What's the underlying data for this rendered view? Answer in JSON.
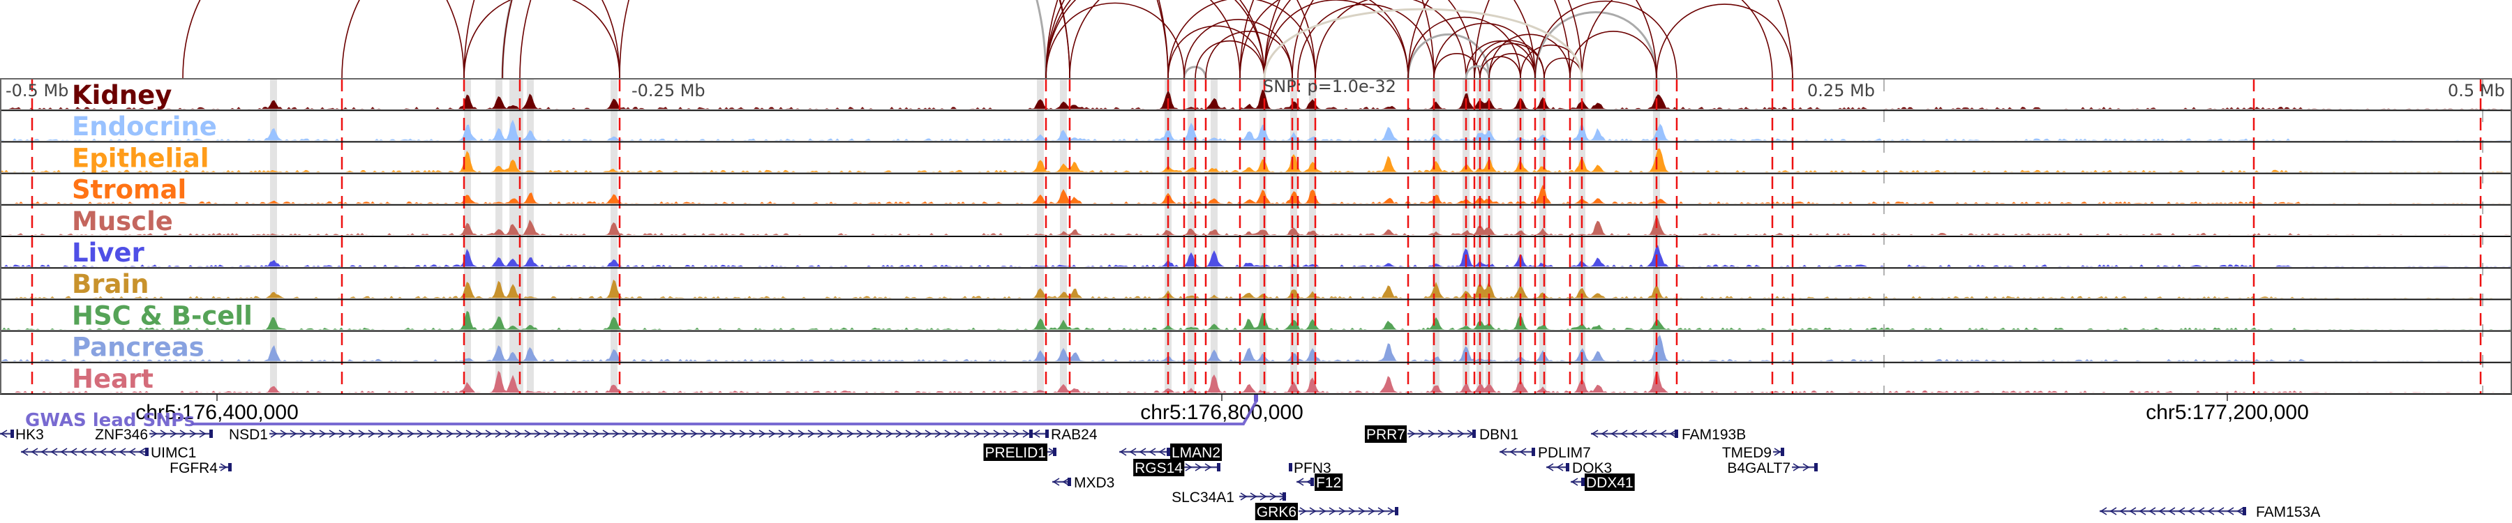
{
  "axis": {
    "top_labels": [
      "-0.5 Mb",
      "-0.25 Mb",
      "SNP: p=1.0e-32",
      "0.25 Mb",
      "0.5 Mb"
    ],
    "coords": [
      "chr5:176,400,000",
      "chr5:176,800,000",
      "chr5:177,200,000"
    ]
  },
  "tracks": [
    {
      "label": "Kidney",
      "color": "#6b0000"
    },
    {
      "label": "Endocrine",
      "color": "#99c2ff"
    },
    {
      "label": "Epithelial",
      "color": "#ff9c1a"
    },
    {
      "label": "Stromal",
      "color": "#ff7314"
    },
    {
      "label": "Muscle",
      "color": "#c4665e"
    },
    {
      "label": "Liver",
      "color": "#4f4fe6"
    },
    {
      "label": "Brain",
      "color": "#c8922c"
    },
    {
      "label": "HSC & B-cell",
      "color": "#55a357"
    },
    {
      "label": "Pancreas",
      "color": "#88a2e0"
    },
    {
      "label": "Heart",
      "color": "#d46c7a"
    }
  ],
  "gwas": {
    "label": "GWAS lead SNPs",
    "color": "#6a5acd"
  },
  "genes": [
    {
      "name": "HK3",
      "strand": "-",
      "highlight": false
    },
    {
      "name": "ZNF346",
      "strand": "+",
      "highlight": false
    },
    {
      "name": "UIMC1",
      "strand": "-",
      "highlight": false
    },
    {
      "name": "FGFR4",
      "strand": "+",
      "highlight": false
    },
    {
      "name": "NSD1",
      "strand": "+",
      "highlight": false
    },
    {
      "name": "RAB24",
      "strand": "-",
      "highlight": false
    },
    {
      "name": "PRELID1",
      "strand": "+",
      "highlight": true
    },
    {
      "name": "LMAN2",
      "strand": "-",
      "highlight": true
    },
    {
      "name": "RGS14",
      "strand": "+",
      "highlight": true
    },
    {
      "name": "MXD3",
      "strand": "-",
      "highlight": false
    },
    {
      "name": "PFN3",
      "strand": "+",
      "highlight": false
    },
    {
      "name": "F12",
      "strand": "-",
      "highlight": true
    },
    {
      "name": "SLC34A1",
      "strand": "+",
      "highlight": false
    },
    {
      "name": "GRK6",
      "strand": "+",
      "highlight": true
    },
    {
      "name": "PRR7",
      "strand": "+",
      "highlight": true
    },
    {
      "name": "DBN1",
      "strand": "-",
      "highlight": false
    },
    {
      "name": "PDLIM7",
      "strand": "-",
      "highlight": false
    },
    {
      "name": "DOK3",
      "strand": "-",
      "highlight": false
    },
    {
      "name": "DDX41",
      "strand": "-",
      "highlight": true
    },
    {
      "name": "FAM193B",
      "strand": "-",
      "highlight": false
    },
    {
      "name": "TMED9",
      "strand": "+",
      "highlight": false
    },
    {
      "name": "B4GALT7",
      "strand": "+",
      "highlight": false
    },
    {
      "name": "FAM153A",
      "strand": "-",
      "highlight": false
    }
  ]
}
